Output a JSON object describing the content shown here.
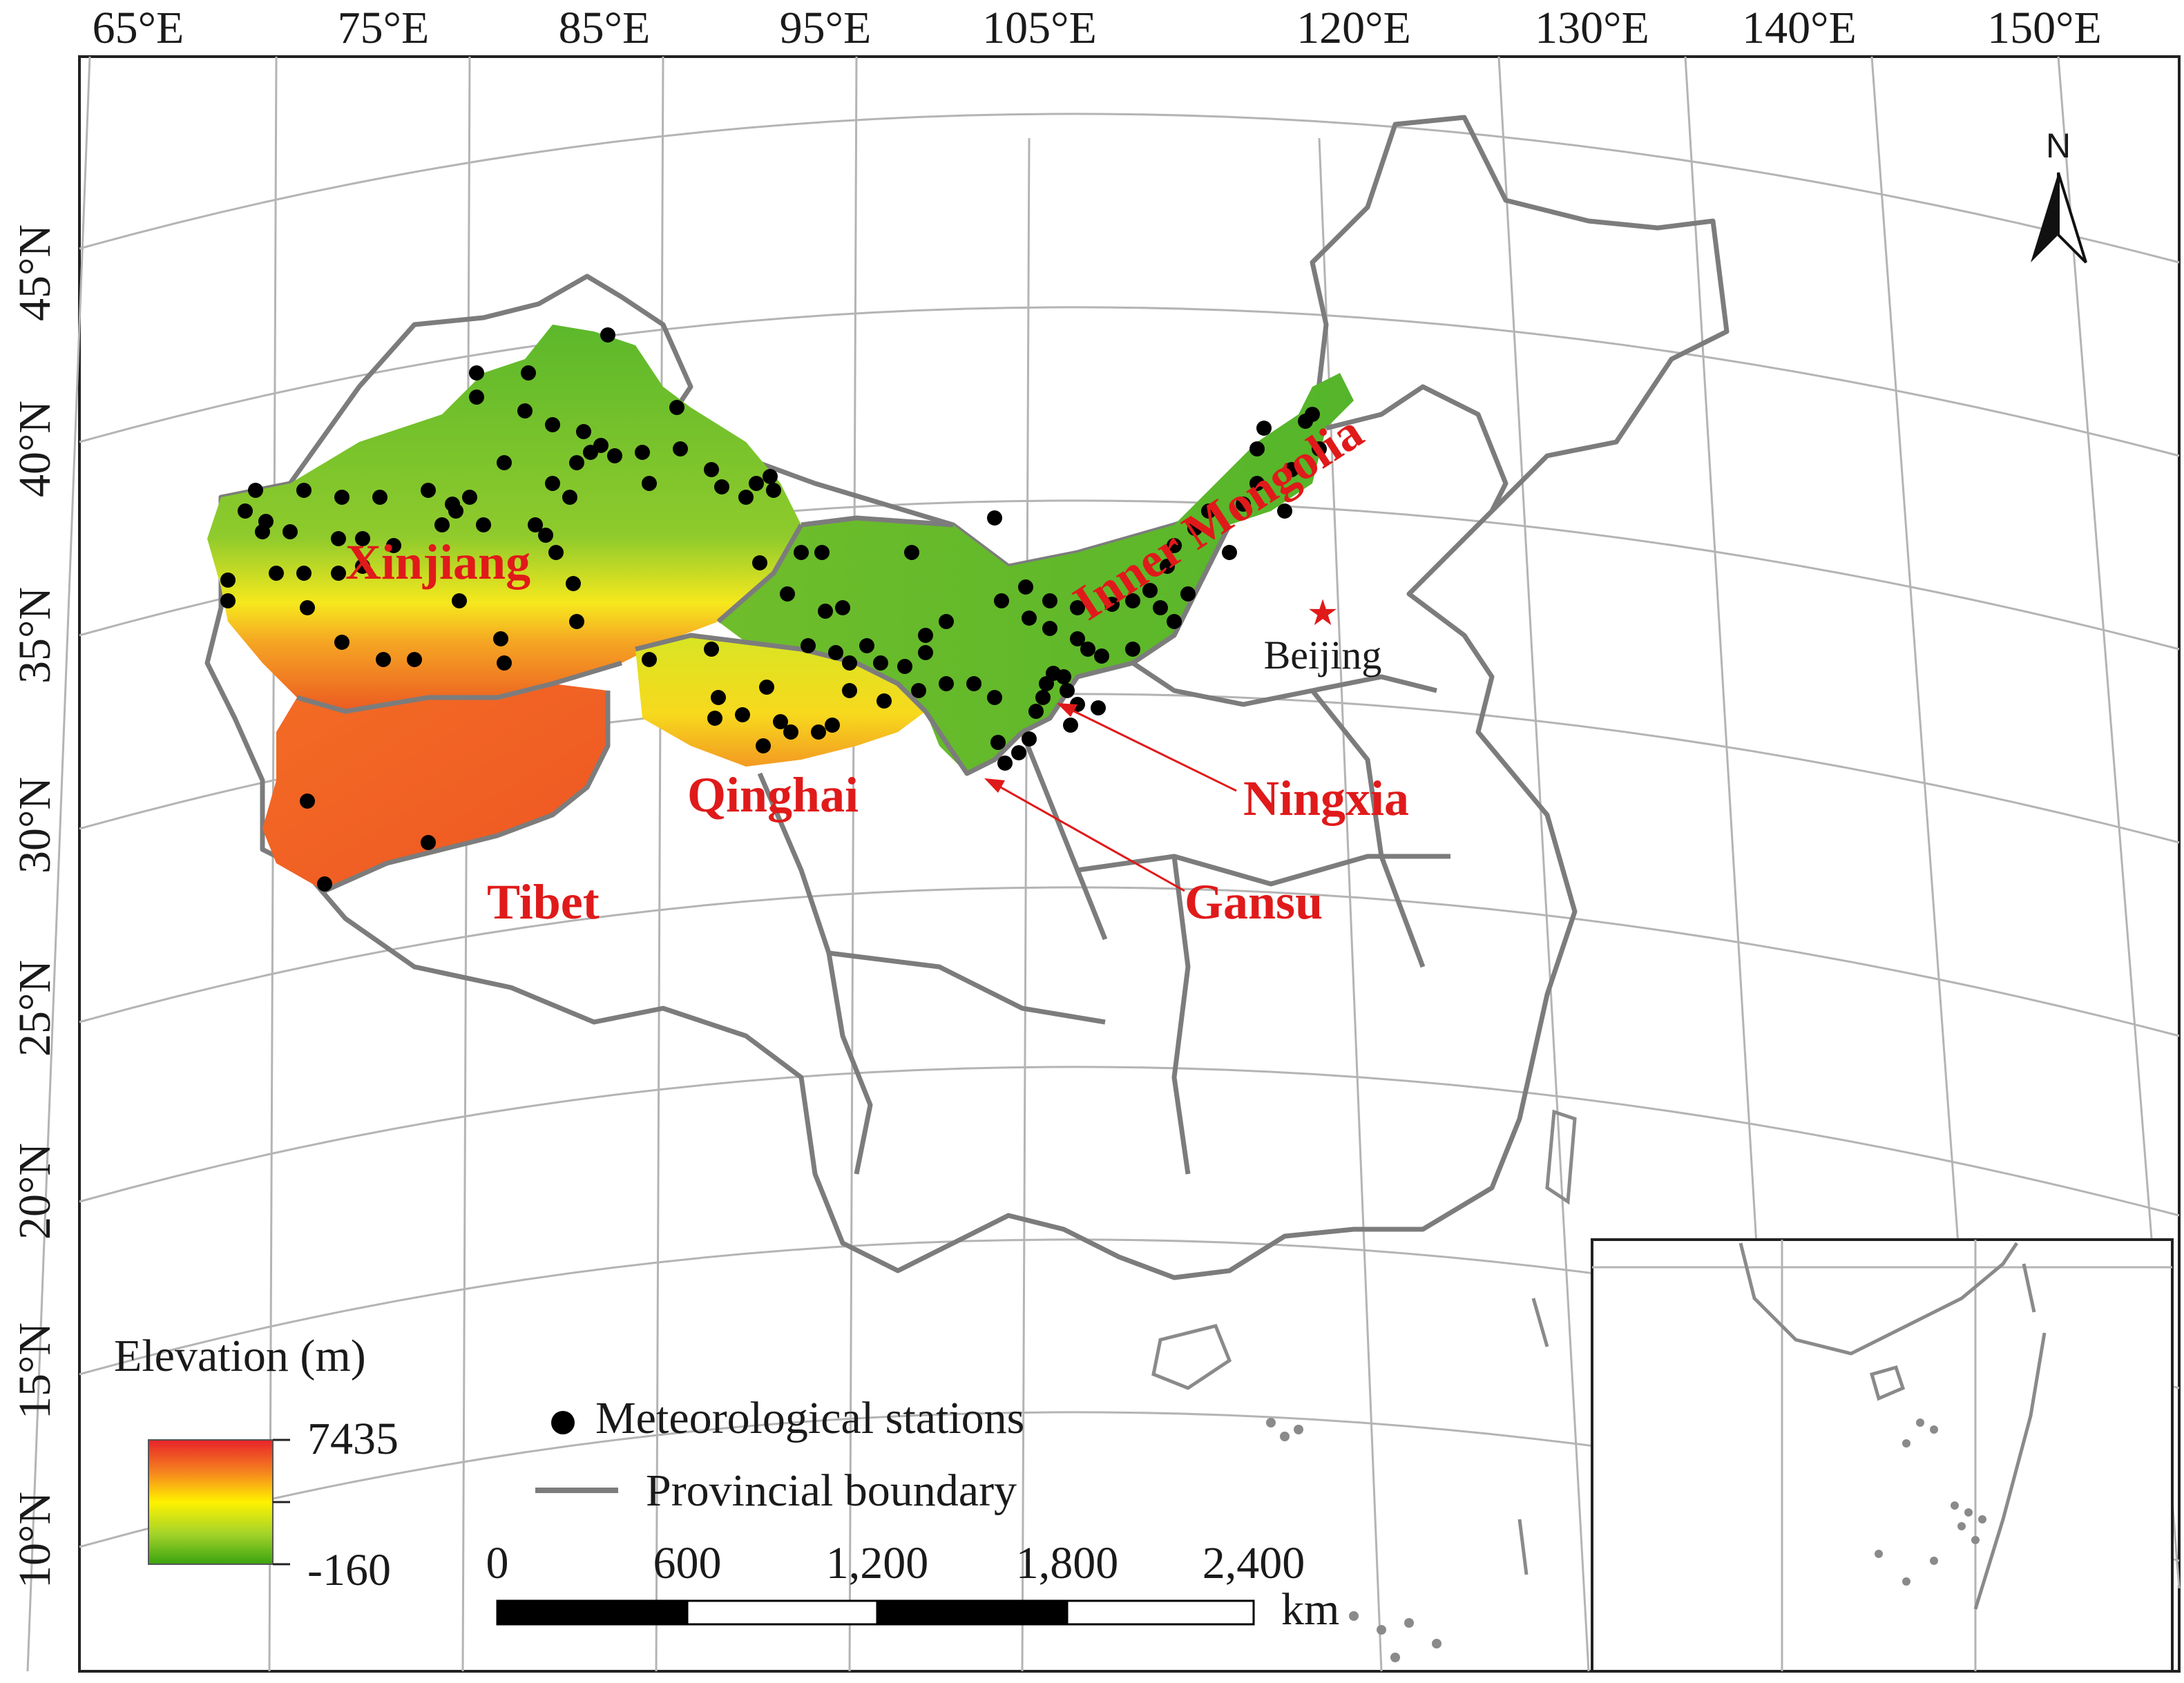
{
  "map": {
    "longitude_labels": [
      "65°E",
      "75°E",
      "85°E",
      "95°E",
      "105°E",
      "120°E",
      "130°E",
      "140°E",
      "150°E"
    ],
    "latitude_labels": [
      "45°N",
      "40°N",
      "35°N",
      "30°N",
      "25°N",
      "20°N",
      "15°N",
      "10°N"
    ],
    "regions": [
      {
        "id": "xinjiang",
        "name": "Xinjiang"
      },
      {
        "id": "qinghai",
        "name": "Qinghai"
      },
      {
        "id": "tibet",
        "name": "Tibet"
      },
      {
        "id": "inner-mongolia",
        "name": "Inner Mongolia"
      },
      {
        "id": "ningxia",
        "name": "Ningxia"
      },
      {
        "id": "gansu",
        "name": "Gansu"
      }
    ],
    "capital": {
      "name": "Beijing"
    },
    "north_arrow": {
      "label": "N"
    },
    "colors": {
      "label_red": "#e01a1a",
      "boundary": "#7c7c7c",
      "grid": "#b4b4b4",
      "station": "#000000",
      "elev_high": "#e8232a",
      "elev_mid": "#fff200",
      "elev_low": "#3aa30f"
    }
  },
  "legend": {
    "elevation_title": "Elevation (m)",
    "elevation_max": "7435",
    "elevation_min": "-160",
    "stations_label": "Meteorological stations",
    "boundary_label": "Provincial boundary"
  },
  "scalebar": {
    "ticks": [
      "0",
      "600",
      "1,200",
      "1,800",
      "2,400"
    ],
    "unit": "km"
  }
}
